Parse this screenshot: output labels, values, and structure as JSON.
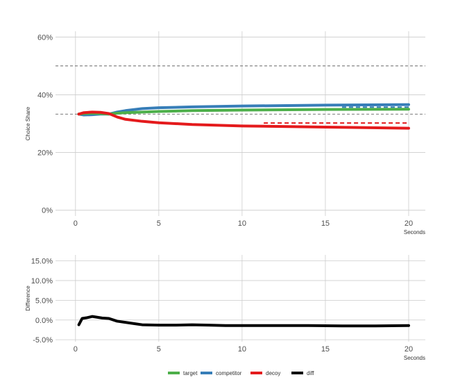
{
  "colors": {
    "target": "#4daf4a",
    "competitor": "#377eb8",
    "decoy": "#e41a1c",
    "diff": "#000000",
    "grid": "#cccccc",
    "ref": "#666666"
  },
  "chart_data": [
    {
      "type": "line",
      "ylabel": "Choice Share",
      "xlabel": "Seconds",
      "xlim": [
        -1.2,
        21
      ],
      "ylim": [
        -0.02,
        0.62
      ],
      "x_ticks": [
        0,
        5,
        10,
        15,
        20
      ],
      "x_tick_labels": [
        "0",
        "5",
        "10",
        "15",
        "20"
      ],
      "y_ticks": [
        0,
        0.2,
        0.4,
        0.6
      ],
      "y_tick_labels": [
        "0%",
        "20%",
        "40%",
        "60%"
      ],
      "grid": true,
      "reference_lines": [
        {
          "y": 0.5,
          "style": "dashed",
          "color": "#666666"
        },
        {
          "y": 0.333,
          "style": "dashed",
          "color": "#666666"
        }
      ],
      "series": [
        {
          "name": "target",
          "x": [
            0.2,
            0.5,
            1,
            1.5,
            2,
            2.5,
            3,
            4,
            5,
            7,
            10,
            15,
            20
          ],
          "values": [
            0.333,
            0.335,
            0.336,
            0.335,
            0.333,
            0.336,
            0.338,
            0.34,
            0.342,
            0.345,
            0.347,
            0.349,
            0.35
          ]
        },
        {
          "name": "competitor",
          "x": [
            0.2,
            0.5,
            1,
            1.5,
            2,
            2.5,
            3,
            4,
            5,
            7,
            10,
            15,
            20
          ],
          "values": [
            0.333,
            0.33,
            0.331,
            0.333,
            0.333,
            0.34,
            0.345,
            0.352,
            0.355,
            0.358,
            0.361,
            0.364,
            0.366
          ]
        },
        {
          "name": "decoy",
          "x": [
            0.2,
            0.5,
            1,
            1.5,
            2,
            2.5,
            3,
            4,
            5,
            7,
            10,
            15,
            20
          ],
          "values": [
            0.333,
            0.338,
            0.34,
            0.339,
            0.335,
            0.323,
            0.315,
            0.308,
            0.303,
            0.297,
            0.292,
            0.288,
            0.284
          ]
        }
      ],
      "dashed_ends": [
        {
          "series": "target",
          "x": [
            16,
            20
          ],
          "values": [
            0.352,
            0.352
          ]
        },
        {
          "series": "competitor",
          "x": [
            16,
            20
          ],
          "values": [
            0.357,
            0.357
          ]
        },
        {
          "series": "decoy",
          "x": [
            11.3,
            20
          ],
          "values": [
            0.302,
            0.302
          ]
        }
      ]
    },
    {
      "type": "line",
      "ylabel": "Difference",
      "xlabel": "Seconds",
      "xlim": [
        -1.2,
        21
      ],
      "ylim": [
        -0.055,
        0.165
      ],
      "x_ticks": [
        0,
        5,
        10,
        15,
        20
      ],
      "x_tick_labels": [
        "0",
        "5",
        "10",
        "15",
        "20"
      ],
      "y_ticks": [
        -0.05,
        0,
        0.05,
        0.1,
        0.15
      ],
      "y_tick_labels": [
        "-5.0%",
        "0.0%",
        "5.0%",
        "10.0%",
        "15.0%"
      ],
      "grid": true,
      "series": [
        {
          "name": "diff",
          "x": [
            0.2,
            0.4,
            0.7,
            1.0,
            1.3,
            1.6,
            2.0,
            2.5,
            3.0,
            3.5,
            4.0,
            5,
            6,
            7,
            8,
            9,
            10,
            12,
            14,
            16,
            18,
            20
          ],
          "values": [
            -0.012,
            0.004,
            0.006,
            0.009,
            0.007,
            0.005,
            0.004,
            -0.003,
            -0.006,
            -0.009,
            -0.012,
            -0.013,
            -0.013,
            -0.012,
            -0.013,
            -0.014,
            -0.014,
            -0.014,
            -0.014,
            -0.015,
            -0.015,
            -0.014
          ]
        }
      ]
    }
  ],
  "legend": {
    "position": "bottom",
    "items": [
      {
        "key": "target",
        "label": "target"
      },
      {
        "key": "competitor",
        "label": "competitor"
      },
      {
        "key": "decoy",
        "label": "decoy"
      },
      {
        "key": "diff",
        "label": "diff"
      }
    ]
  }
}
